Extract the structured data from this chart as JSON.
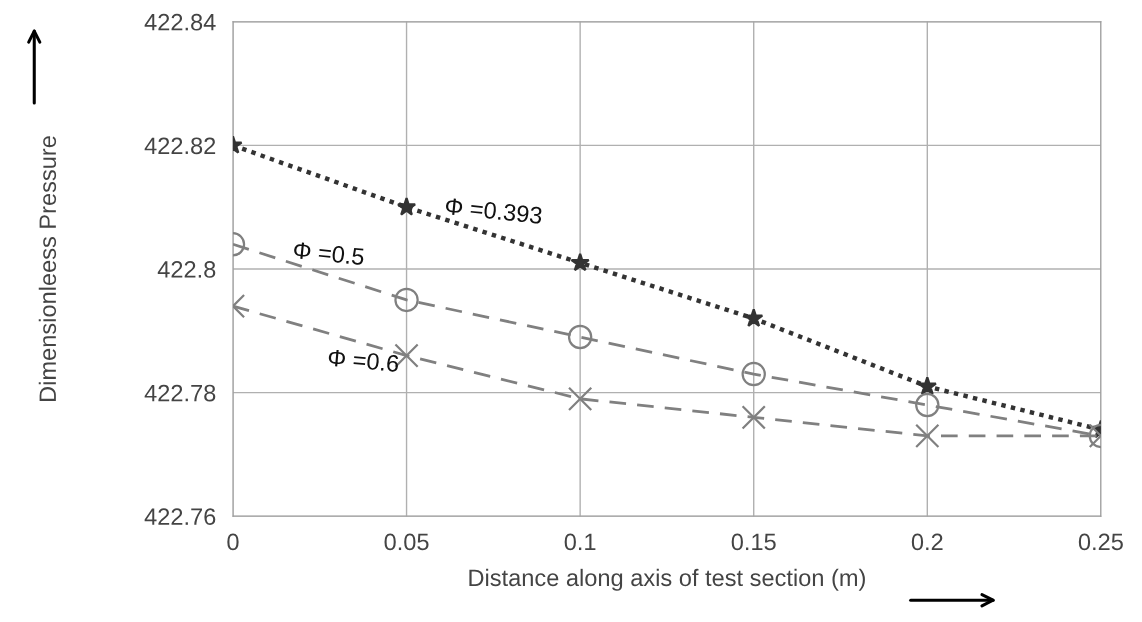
{
  "chart_data": {
    "type": "line",
    "xlabel": "Distance along axis of test section (m)",
    "ylabel": "Dimensionleess Pressure",
    "x": [
      0,
      0.05,
      0.1,
      0.15,
      0.2,
      0.25
    ],
    "series": [
      {
        "name": "Φ =0.393",
        "color": "#333333",
        "marker": "star",
        "line_style": "dotted",
        "values": [
          422.82,
          422.81,
          422.801,
          422.792,
          422.781,
          422.774
        ]
      },
      {
        "name": "Φ =0.5",
        "color": "#808080",
        "marker": "circle",
        "line_style": "dashed",
        "values": [
          422.804,
          422.795,
          422.789,
          422.783,
          422.778,
          422.773
        ]
      },
      {
        "name": "Φ =0.6",
        "color": "#808080",
        "marker": "cross",
        "line_style": "dashed",
        "values": [
          422.794,
          422.786,
          422.779,
          422.776,
          422.773,
          422.773
        ]
      }
    ],
    "xlim": [
      0,
      0.25
    ],
    "xticks": [
      0,
      0.05,
      0.1,
      0.15,
      0.2,
      0.25
    ],
    "ylim": [
      422.76,
      422.84
    ],
    "yticks": [
      422.76,
      422.78,
      422.8,
      422.82,
      422.84
    ],
    "grid": true,
    "legend": false
  }
}
